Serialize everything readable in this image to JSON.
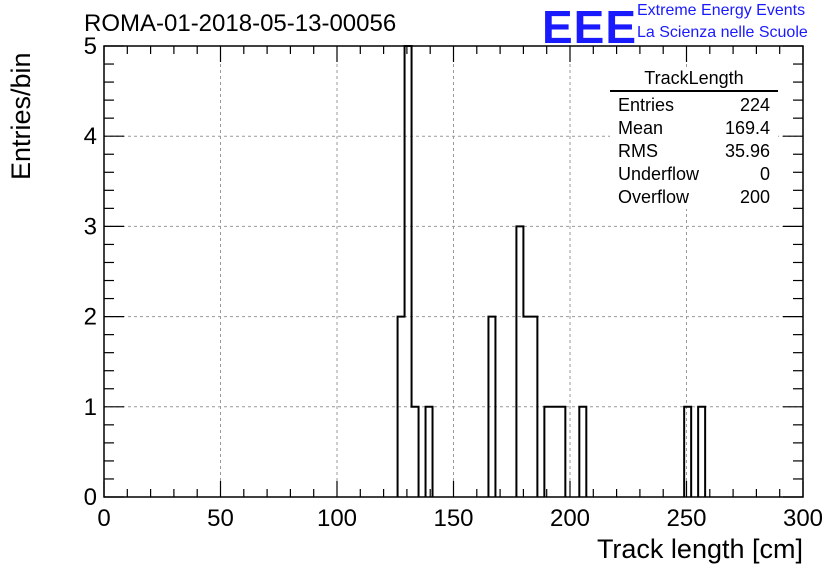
{
  "header": {
    "run_title": "ROMA-01-2018-05-13-00056",
    "logo": "EEE",
    "logo_line1": "Extreme Energy Events",
    "logo_line2": "La Scienza nelle Scuole"
  },
  "stats": {
    "title": "TrackLength",
    "rows": [
      {
        "label": "Entries",
        "value": "224"
      },
      {
        "label": "Mean",
        "value": "169.4"
      },
      {
        "label": "RMS",
        "value": "35.96"
      },
      {
        "label": "Underflow",
        "value": "0"
      },
      {
        "label": "Overflow",
        "value": "200"
      }
    ]
  },
  "chart_data": {
    "type": "bar",
    "xlabel": "Track length [cm]",
    "ylabel": "Entries/bin",
    "xlim": [
      0,
      300
    ],
    "ylim": [
      0,
      5
    ],
    "xticks": [
      0,
      50,
      100,
      150,
      200,
      250,
      300
    ],
    "yticks": [
      0,
      1,
      2,
      3,
      4,
      5
    ],
    "grid": true,
    "bin_width": 3,
    "bins": [
      {
        "x": 126,
        "value": 2
      },
      {
        "x": 129,
        "value": 5
      },
      {
        "x": 132,
        "value": 1
      },
      {
        "x": 138,
        "value": 1
      },
      {
        "x": 165,
        "value": 2
      },
      {
        "x": 177,
        "value": 3
      },
      {
        "x": 180,
        "value": 2
      },
      {
        "x": 183,
        "value": 2
      },
      {
        "x": 189,
        "value": 1
      },
      {
        "x": 192,
        "value": 1
      },
      {
        "x": 195,
        "value": 1
      },
      {
        "x": 204,
        "value": 1
      },
      {
        "x": 249,
        "value": 1
      },
      {
        "x": 255,
        "value": 1
      }
    ]
  }
}
